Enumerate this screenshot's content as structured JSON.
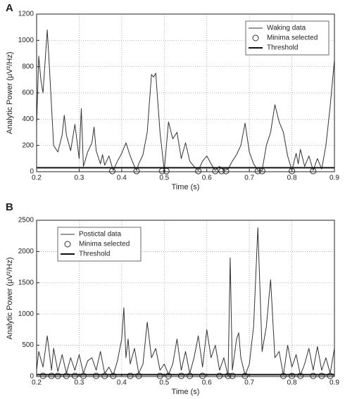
{
  "chart_data": [
    {
      "type": "line",
      "panel_label": "A",
      "xlabel": "Time (s)",
      "ylabel": "Analytic Power (μV²/Hz)",
      "xlim": [
        0.2,
        0.9
      ],
      "xticks": [
        0.2,
        0.3,
        0.4,
        0.5,
        0.6,
        0.7,
        0.8,
        0.9
      ],
      "ylim": [
        0,
        1200
      ],
      "yticks": [
        0,
        200,
        400,
        600,
        800,
        1000,
        1200
      ],
      "grid": true,
      "legend": "upper right",
      "series": [
        {
          "name": "Waking data",
          "color": "#333333",
          "linewidth": 1,
          "x": [
            0.2,
            0.205,
            0.21,
            0.215,
            0.225,
            0.23,
            0.24,
            0.25,
            0.26,
            0.265,
            0.27,
            0.28,
            0.29,
            0.3,
            0.305,
            0.31,
            0.32,
            0.33,
            0.335,
            0.34,
            0.35,
            0.355,
            0.36,
            0.37,
            0.38,
            0.39,
            0.4,
            0.41,
            0.42,
            0.43,
            0.435,
            0.44,
            0.45,
            0.46,
            0.47,
            0.475,
            0.48,
            0.49,
            0.5,
            0.51,
            0.52,
            0.53,
            0.54,
            0.55,
            0.56,
            0.57,
            0.58,
            0.59,
            0.6,
            0.61,
            0.62,
            0.63,
            0.64,
            0.65,
            0.66,
            0.67,
            0.68,
            0.69,
            0.7,
            0.71,
            0.72,
            0.73,
            0.74,
            0.75,
            0.76,
            0.77,
            0.78,
            0.79,
            0.8,
            0.81,
            0.815,
            0.82,
            0.83,
            0.84,
            0.85,
            0.86,
            0.87,
            0.88,
            0.89,
            0.9
          ],
          "values": [
            350,
            880,
            700,
            600,
            1080,
            800,
            200,
            150,
            280,
            430,
            280,
            160,
            360,
            100,
            480,
            40,
            150,
            220,
            340,
            160,
            60,
            130,
            50,
            120,
            10,
            80,
            140,
            220,
            120,
            40,
            10,
            60,
            130,
            300,
            740,
            720,
            750,
            300,
            10,
            380,
            250,
            300,
            100,
            220,
            80,
            40,
            10,
            80,
            120,
            60,
            10,
            40,
            10,
            20,
            80,
            130,
            200,
            370,
            150,
            60,
            10,
            10,
            200,
            300,
            510,
            380,
            300,
            120,
            10,
            140,
            60,
            170,
            40,
            120,
            10,
            100,
            20,
            200,
            500,
            850
          ]
        },
        {
          "name": "Minima selected",
          "color": "#333333",
          "marker": "circle",
          "x": [
            0.378,
            0.435,
            0.495,
            0.505,
            0.58,
            0.62,
            0.635,
            0.645,
            0.72,
            0.73,
            0.8,
            0.85
          ],
          "values": [
            5,
            5,
            5,
            5,
            5,
            5,
            5,
            5,
            5,
            5,
            5,
            5
          ]
        },
        {
          "name": "Threshold",
          "color": "#111111",
          "linewidth": 2,
          "x": [
            0.2,
            0.9
          ],
          "values": [
            30,
            30
          ]
        }
      ]
    },
    {
      "type": "line",
      "panel_label": "B",
      "xlabel": "Time (s)",
      "ylabel": "Analytic Power (μV²/Hz)",
      "xlim": [
        0.2,
        0.9
      ],
      "xticks": [
        0.2,
        0.3,
        0.4,
        0.5,
        0.6,
        0.7,
        0.8,
        0.9
      ],
      "ylim": [
        0,
        2500
      ],
      "yticks": [
        0,
        500,
        1000,
        1500,
        2000,
        2500
      ],
      "grid": true,
      "legend": "upper left",
      "series": [
        {
          "name": "Postictal data",
          "color": "#333333",
          "linewidth": 1,
          "x": [
            0.2,
            0.205,
            0.215,
            0.225,
            0.235,
            0.24,
            0.25,
            0.26,
            0.27,
            0.28,
            0.29,
            0.3,
            0.31,
            0.32,
            0.33,
            0.34,
            0.35,
            0.36,
            0.37,
            0.38,
            0.39,
            0.4,
            0.405,
            0.41,
            0.415,
            0.42,
            0.43,
            0.44,
            0.45,
            0.46,
            0.47,
            0.48,
            0.49,
            0.5,
            0.51,
            0.52,
            0.53,
            0.54,
            0.55,
            0.56,
            0.57,
            0.58,
            0.59,
            0.6,
            0.61,
            0.62,
            0.63,
            0.64,
            0.65,
            0.655,
            0.66,
            0.67,
            0.675,
            0.68,
            0.69,
            0.7,
            0.71,
            0.72,
            0.73,
            0.74,
            0.75,
            0.76,
            0.77,
            0.78,
            0.79,
            0.8,
            0.81,
            0.82,
            0.83,
            0.84,
            0.85,
            0.86,
            0.87,
            0.88,
            0.89,
            0.9
          ],
          "values": [
            100,
            400,
            150,
            650,
            100,
            450,
            80,
            350,
            50,
            300,
            100,
            350,
            50,
            250,
            300,
            100,
            400,
            50,
            150,
            20,
            250,
            600,
            1100,
            300,
            600,
            200,
            450,
            50,
            200,
            870,
            300,
            450,
            100,
            200,
            30,
            200,
            600,
            100,
            400,
            50,
            300,
            650,
            150,
            750,
            300,
            500,
            100,
            300,
            10,
            1900,
            100,
            600,
            700,
            300,
            20,
            200,
            800,
            2380,
            400,
            800,
            1550,
            300,
            400,
            20,
            500,
            150,
            350,
            20,
            200,
            450,
            100,
            480,
            100,
            300,
            50,
            450
          ]
        },
        {
          "name": "Minima selected",
          "color": "#333333",
          "marker": "circle",
          "x": [
            0.215,
            0.235,
            0.25,
            0.27,
            0.29,
            0.31,
            0.34,
            0.36,
            0.38,
            0.42,
            0.44,
            0.49,
            0.51,
            0.54,
            0.56,
            0.59,
            0.63,
            0.65,
            0.66,
            0.69,
            0.78,
            0.8,
            0.82,
            0.85,
            0.87,
            0.89
          ],
          "values": [
            10,
            10,
            10,
            10,
            10,
            10,
            10,
            10,
            10,
            10,
            10,
            10,
            10,
            10,
            10,
            10,
            10,
            10,
            10,
            10,
            10,
            10,
            10,
            10,
            10,
            10
          ]
        },
        {
          "name": "Threshold",
          "color": "#111111",
          "linewidth": 2,
          "x": [
            0.2,
            0.9
          ],
          "values": [
            30,
            30
          ]
        }
      ]
    }
  ]
}
